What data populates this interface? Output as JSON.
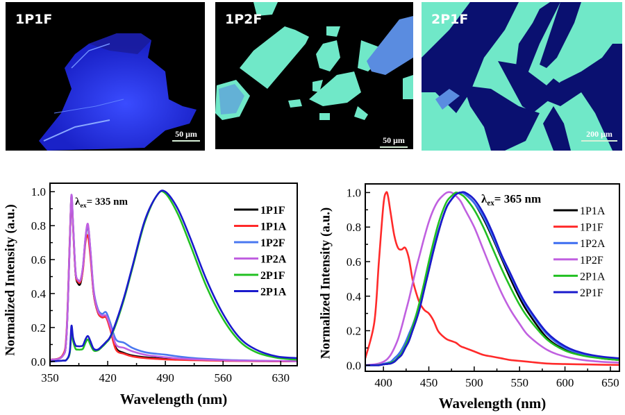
{
  "micrographs": [
    {
      "label": "1P1F",
      "scale_bar": "50 μm"
    },
    {
      "label": "1P2F",
      "scale_bar": "50 μm"
    },
    {
      "label": "2P1F",
      "scale_bar": "200 μm"
    }
  ],
  "chart_data": [
    {
      "type": "line",
      "xlabel": "Wavelength (nm)",
      "ylabel": "Normalized Intensity (a.u.)",
      "xlim": [
        350,
        650
      ],
      "ylim": [
        -0.025,
        1.05
      ],
      "xticks": [
        350,
        420,
        490,
        560,
        630
      ],
      "yticks": [
        0.0,
        0.2,
        0.4,
        0.6,
        0.8,
        1.0
      ],
      "ytick_labels": [
        "0.0",
        "0.2",
        "0.4",
        "0.6",
        "0.8",
        "1.0"
      ],
      "grid": false,
      "legend": "right",
      "annotation": {
        "symbol": "λ",
        "sub": "ex",
        "text": "= 335 nm"
      },
      "x": [
        350,
        365,
        370,
        374,
        376,
        378,
        381,
        384,
        387,
        390,
        393,
        396,
        399,
        403,
        408,
        413,
        418,
        423,
        430,
        440,
        450,
        465,
        480,
        490,
        505,
        520,
        540,
        560,
        580,
        600,
        625,
        650
      ],
      "series": [
        {
          "name": "1P1F",
          "color": "#000000",
          "values": [
            0.01,
            0.03,
            0.15,
            0.7,
            0.97,
            0.8,
            0.52,
            0.46,
            0.46,
            0.55,
            0.72,
            0.8,
            0.65,
            0.4,
            0.29,
            0.26,
            0.26,
            0.2,
            0.08,
            0.05,
            0.035,
            0.025,
            0.02,
            0.015,
            0.012,
            0.01,
            0.008,
            0.005,
            0.004,
            0.003,
            0.002,
            0.001
          ]
        },
        {
          "name": "1P1A",
          "color": "#ff2a2a",
          "values": [
            0.01,
            0.035,
            0.17,
            0.72,
            0.97,
            0.79,
            0.52,
            0.47,
            0.47,
            0.54,
            0.7,
            0.74,
            0.62,
            0.4,
            0.29,
            0.26,
            0.26,
            0.19,
            0.07,
            0.045,
            0.03,
            0.02,
            0.015,
            0.012,
            0.01,
            0.008,
            0.006,
            0.004,
            0.003,
            0.002,
            0.001,
            0.001
          ]
        },
        {
          "name": "1P2F",
          "color": "#4a78f0",
          "values": [
            0.01,
            0.03,
            0.15,
            0.7,
            0.98,
            0.81,
            0.53,
            0.48,
            0.48,
            0.56,
            0.72,
            0.8,
            0.66,
            0.42,
            0.31,
            0.28,
            0.29,
            0.23,
            0.13,
            0.11,
            0.08,
            0.055,
            0.045,
            0.04,
            0.03,
            0.022,
            0.015,
            0.01,
            0.007,
            0.005,
            0.003,
            0.002
          ]
        },
        {
          "name": "1P2A",
          "color": "#c060e0",
          "values": [
            0.01,
            0.03,
            0.15,
            0.7,
            0.98,
            0.81,
            0.53,
            0.48,
            0.48,
            0.56,
            0.73,
            0.81,
            0.66,
            0.41,
            0.3,
            0.27,
            0.27,
            0.21,
            0.1,
            0.08,
            0.06,
            0.04,
            0.03,
            0.025,
            0.018,
            0.014,
            0.01,
            0.007,
            0.005,
            0.004,
            0.003,
            0.002
          ]
        },
        {
          "name": "2P1F",
          "color": "#22c022",
          "values": [
            0.0,
            0.005,
            0.01,
            0.05,
            0.17,
            0.12,
            0.075,
            0.07,
            0.07,
            0.075,
            0.11,
            0.13,
            0.1,
            0.065,
            0.065,
            0.085,
            0.11,
            0.14,
            0.22,
            0.37,
            0.55,
            0.82,
            0.98,
            0.99,
            0.87,
            0.69,
            0.44,
            0.25,
            0.12,
            0.055,
            0.022,
            0.01
          ]
        },
        {
          "name": "2P1A",
          "color": "#1a1acc",
          "values": [
            0.0,
            0.005,
            0.01,
            0.06,
            0.21,
            0.14,
            0.095,
            0.09,
            0.09,
            0.095,
            0.13,
            0.15,
            0.12,
            0.075,
            0.07,
            0.09,
            0.115,
            0.145,
            0.23,
            0.38,
            0.56,
            0.83,
            0.98,
            1.0,
            0.9,
            0.73,
            0.48,
            0.28,
            0.14,
            0.07,
            0.03,
            0.02
          ]
        }
      ]
    },
    {
      "type": "line",
      "xlabel": "Wavelength (nm)",
      "ylabel": "Normalized Intensity (a.u.)",
      "xlim": [
        380,
        660
      ],
      "ylim": [
        -0.035,
        1.05
      ],
      "xticks": [
        400,
        450,
        500,
        550,
        600,
        650
      ],
      "yticks": [
        0.0,
        0.2,
        0.4,
        0.6,
        0.8,
        1.0
      ],
      "ytick_labels": [
        "0.0",
        "0.2",
        "0.4",
        "0.6",
        "0.8",
        "1.0"
      ],
      "grid": false,
      "legend": "right",
      "annotation": {
        "symbol": "λ",
        "sub": "ex",
        "text": "= 365 nm"
      },
      "x": [
        380,
        390,
        395,
        400,
        403,
        405,
        408,
        412,
        416,
        420,
        424,
        428,
        432,
        436,
        440,
        445,
        450,
        455,
        460,
        465,
        470,
        475,
        480,
        485,
        490,
        500,
        510,
        520,
        530,
        540,
        550,
        560,
        580,
        600,
        620,
        640,
        660
      ],
      "series": [
        {
          "name": "1P1A",
          "color": "#000000",
          "values": [
            0,
            0,
            0,
            0.005,
            0.007,
            0.008,
            0.01,
            0.02,
            0.04,
            0.06,
            0.1,
            0.14,
            0.2,
            0.26,
            0.33,
            0.44,
            0.55,
            0.66,
            0.76,
            0.85,
            0.92,
            0.96,
            0.99,
            1.0,
            0.99,
            0.94,
            0.85,
            0.74,
            0.62,
            0.5,
            0.39,
            0.3,
            0.16,
            0.09,
            0.06,
            0.04,
            0.03
          ]
        },
        {
          "name": "1P1F",
          "color": "#ff2a2a",
          "values": [
            0.04,
            0.25,
            0.6,
            0.93,
            1.0,
            0.98,
            0.88,
            0.75,
            0.68,
            0.67,
            0.68,
            0.62,
            0.5,
            0.42,
            0.36,
            0.32,
            0.3,
            0.26,
            0.2,
            0.17,
            0.15,
            0.14,
            0.13,
            0.11,
            0.1,
            0.08,
            0.06,
            0.05,
            0.04,
            0.03,
            0.025,
            0.02,
            0.01,
            0.007,
            0.005,
            0.003,
            0.002
          ]
        },
        {
          "name": "1P2A",
          "color": "#3b6cf0",
          "values": [
            0,
            0.002,
            0.004,
            0.008,
            0.012,
            0.015,
            0.02,
            0.04,
            0.06,
            0.09,
            0.13,
            0.18,
            0.23,
            0.29,
            0.36,
            0.46,
            0.57,
            0.67,
            0.77,
            0.85,
            0.92,
            0.96,
            0.99,
            1.0,
            0.99,
            0.94,
            0.86,
            0.75,
            0.63,
            0.52,
            0.41,
            0.32,
            0.18,
            0.1,
            0.065,
            0.045,
            0.035
          ]
        },
        {
          "name": "1P2F",
          "color": "#c060e0",
          "values": [
            0,
            0.005,
            0.01,
            0.02,
            0.03,
            0.04,
            0.06,
            0.1,
            0.15,
            0.22,
            0.3,
            0.38,
            0.47,
            0.56,
            0.64,
            0.74,
            0.83,
            0.9,
            0.95,
            0.98,
            1.0,
            1.0,
            0.98,
            0.95,
            0.9,
            0.8,
            0.67,
            0.54,
            0.42,
            0.32,
            0.24,
            0.17,
            0.09,
            0.05,
            0.03,
            0.02,
            0.015
          ]
        },
        {
          "name": "2P1A",
          "color": "#22c022",
          "values": [
            0,
            0,
            0.002,
            0.005,
            0.008,
            0.01,
            0.015,
            0.025,
            0.045,
            0.07,
            0.11,
            0.16,
            0.22,
            0.29,
            0.37,
            0.48,
            0.6,
            0.71,
            0.81,
            0.89,
            0.95,
            0.98,
            1.0,
            0.99,
            0.97,
            0.9,
            0.8,
            0.68,
            0.56,
            0.45,
            0.35,
            0.27,
            0.15,
            0.085,
            0.055,
            0.04,
            0.03
          ]
        },
        {
          "name": "2P1F",
          "color": "#1a1acc",
          "values": [
            0,
            0,
            0,
            0.005,
            0.007,
            0.008,
            0.01,
            0.02,
            0.04,
            0.06,
            0.1,
            0.14,
            0.2,
            0.26,
            0.33,
            0.44,
            0.55,
            0.66,
            0.76,
            0.85,
            0.92,
            0.96,
            0.99,
            1.0,
            1.0,
            0.96,
            0.88,
            0.77,
            0.64,
            0.53,
            0.42,
            0.33,
            0.19,
            0.11,
            0.07,
            0.05,
            0.04
          ]
        }
      ]
    }
  ]
}
